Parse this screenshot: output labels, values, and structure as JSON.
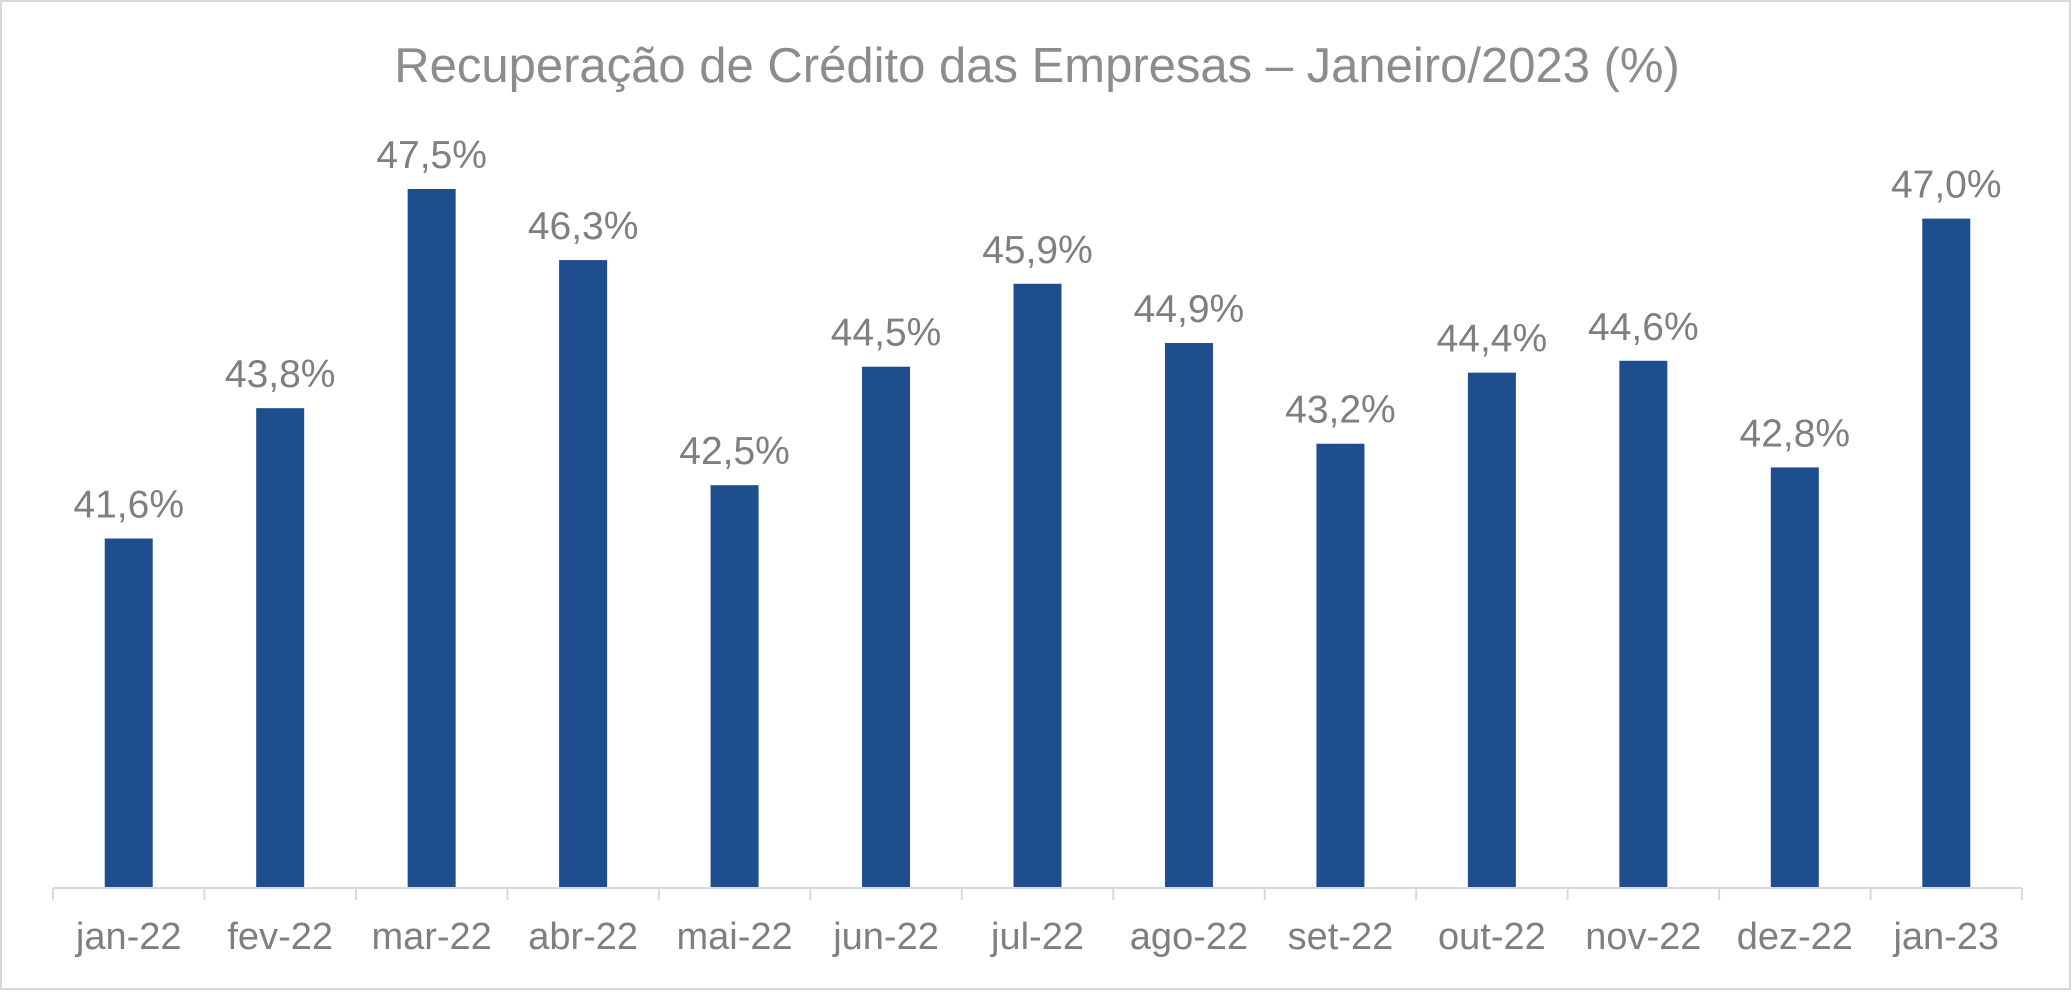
{
  "chart_data": {
    "type": "bar",
    "title": "Recuperação de Crédito das Empresas – Janeiro/2023 (%)",
    "xlabel": "",
    "ylabel": "",
    "categories": [
      "jan-22",
      "fev-22",
      "mar-22",
      "abr-22",
      "mai-22",
      "jun-22",
      "jul-22",
      "ago-22",
      "set-22",
      "out-22",
      "nov-22",
      "dez-22",
      "jan-23"
    ],
    "values": [
      41.6,
      43.8,
      47.5,
      46.3,
      42.5,
      44.5,
      45.9,
      44.9,
      43.2,
      44.4,
      44.6,
      42.8,
      47.0
    ],
    "data_labels": [
      "41,6%",
      "43,8%",
      "47,5%",
      "46,3%",
      "42,5%",
      "44,5%",
      "45,9%",
      "44,9%",
      "43,2%",
      "44,4%",
      "44,6%",
      "42,8%",
      "47,0%"
    ],
    "ylim": [
      35.7,
      47.5
    ],
    "grid": false,
    "legend": "none",
    "colors": {
      "bar": "#1f4e8f",
      "text": "#7f7f7f",
      "title": "#8c8c8c",
      "axis": "#d9d9d9"
    }
  }
}
